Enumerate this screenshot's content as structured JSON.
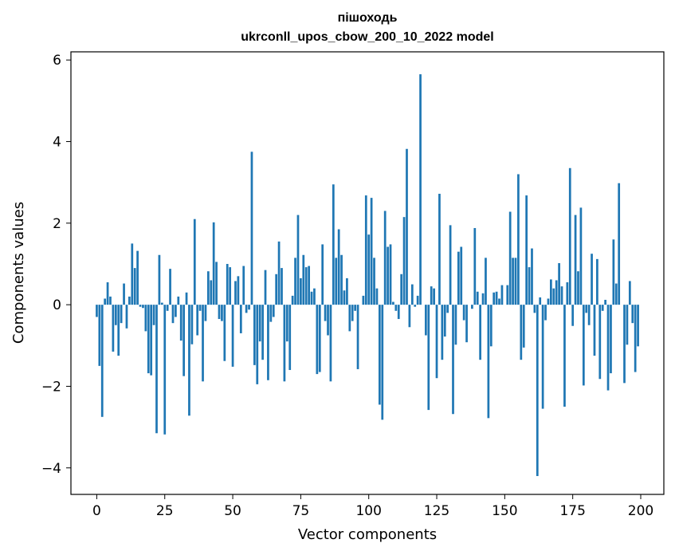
{
  "chart_data": {
    "type": "bar",
    "title": "пішоходь",
    "subtitle": "ukrconll_upos_cbow_200_10_2022 model",
    "xlabel": "Vector components",
    "ylabel": "Components values",
    "xlim": [
      -9.5,
      208.5
    ],
    "ylim": [
      -4.65,
      6.2
    ],
    "xticks": [
      0,
      25,
      50,
      75,
      100,
      125,
      150,
      175,
      200
    ],
    "xtick_labels": [
      "0",
      "25",
      "50",
      "75",
      "100",
      "125",
      "150",
      "175",
      "200"
    ],
    "yticks": [
      -4,
      -2,
      0,
      2,
      4,
      6
    ],
    "ytick_labels": [
      "−4",
      "−2",
      "0",
      "2",
      "4",
      "6"
    ],
    "bar_color": "#1f77b4",
    "grid": false,
    "legend": "none",
    "x": [
      0,
      1,
      2,
      3,
      4,
      5,
      6,
      7,
      8,
      9,
      10,
      11,
      12,
      13,
      14,
      15,
      16,
      17,
      18,
      19,
      20,
      21,
      22,
      23,
      24,
      25,
      26,
      27,
      28,
      29,
      30,
      31,
      32,
      33,
      34,
      35,
      36,
      37,
      38,
      39,
      40,
      41,
      42,
      43,
      44,
      45,
      46,
      47,
      48,
      49,
      50,
      51,
      52,
      53,
      54,
      55,
      56,
      57,
      58,
      59,
      60,
      61,
      62,
      63,
      64,
      65,
      66,
      67,
      68,
      69,
      70,
      71,
      72,
      73,
      74,
      75,
      76,
      77,
      78,
      79,
      80,
      81,
      82,
      83,
      84,
      85,
      86,
      87,
      88,
      89,
      90,
      91,
      92,
      93,
      94,
      95,
      96,
      97,
      98,
      99,
      100,
      101,
      102,
      103,
      104,
      105,
      106,
      107,
      108,
      109,
      110,
      111,
      112,
      113,
      114,
      115,
      116,
      117,
      118,
      119,
      120,
      121,
      122,
      123,
      124,
      125,
      126,
      127,
      128,
      129,
      130,
      131,
      132,
      133,
      134,
      135,
      136,
      137,
      138,
      139,
      140,
      141,
      142,
      143,
      144,
      145,
      146,
      147,
      148,
      149,
      150,
      151,
      152,
      153,
      154,
      155,
      156,
      157,
      158,
      159,
      160,
      161,
      162,
      163,
      164,
      165,
      166,
      167,
      168,
      169,
      170,
      171,
      172,
      173,
      174,
      175,
      176,
      177,
      178,
      179,
      180,
      181,
      182,
      183,
      184,
      185,
      186,
      187,
      188,
      189,
      190,
      191,
      192,
      193,
      194,
      195,
      196,
      197,
      198,
      199
    ],
    "values": [
      -0.3,
      -1.5,
      -2.75,
      0.15,
      0.55,
      0.2,
      -1.15,
      -0.5,
      -1.25,
      -0.45,
      0.52,
      -0.58,
      0.2,
      1.5,
      0.9,
      1.32,
      -0.05,
      -0.08,
      -0.65,
      -1.68,
      -1.73,
      -0.5,
      -3.15,
      1.22,
      0.05,
      -3.18,
      -0.15,
      0.88,
      -0.45,
      -0.3,
      0.2,
      -0.88,
      -1.75,
      0.3,
      -2.72,
      -0.97,
      2.1,
      -0.75,
      -0.15,
      -1.88,
      -0.4,
      0.82,
      0.6,
      2.02,
      1.05,
      -0.35,
      -0.4,
      -1.38,
      1.0,
      0.92,
      -1.52,
      0.58,
      0.7,
      -0.7,
      0.95,
      -0.2,
      -0.12,
      3.75,
      -1.48,
      -1.95,
      -0.9,
      -1.35,
      0.85,
      -1.85,
      -0.42,
      -0.3,
      0.75,
      1.55,
      0.9,
      -1.88,
      -0.9,
      -1.6,
      0.22,
      1.15,
      2.2,
      0.65,
      1.22,
      0.92,
      0.95,
      0.32,
      0.4,
      -1.7,
      -1.65,
      1.48,
      -0.4,
      -0.75,
      -1.88,
      2.95,
      1.15,
      1.85,
      1.22,
      0.35,
      0.65,
      -0.65,
      -0.4,
      -0.15,
      -1.58,
      0.0,
      0.22,
      2.68,
      1.72,
      2.62,
      1.15,
      0.4,
      -2.45,
      -2.82,
      2.3,
      1.42,
      1.48,
      0.07,
      -0.15,
      -0.35,
      0.75,
      2.15,
      3.82,
      -0.55,
      0.5,
      -0.05,
      0.22,
      5.65,
      0.0,
      -0.75,
      -2.58,
      0.45,
      0.4,
      -1.8,
      2.72,
      -1.35,
      -0.78,
      -0.2,
      1.95,
      -2.68,
      -0.98,
      1.3,
      1.42,
      -0.38,
      -0.92,
      0.0,
      -0.1,
      1.88,
      0.32,
      -1.35,
      0.28,
      1.15,
      -2.78,
      -1.02,
      0.3,
      0.32,
      0.15,
      0.48,
      0.0,
      0.48,
      2.28,
      1.15,
      1.15,
      3.2,
      -1.35,
      -1.05,
      2.68,
      0.92,
      1.38,
      -0.2,
      -4.2,
      0.18,
      -2.55,
      -0.38,
      0.15,
      0.62,
      0.4,
      0.6,
      1.02,
      0.45,
      -2.5,
      0.55,
      3.35,
      -0.52,
      2.2,
      0.82,
      2.38,
      -1.98,
      -0.2,
      -0.5,
      1.25,
      -1.25,
      1.12,
      -1.82,
      -0.15,
      0.12,
      -2.1,
      -1.68,
      1.6,
      0.52,
      2.98,
      0.0,
      -1.92,
      -0.98,
      0.58,
      -0.45,
      -1.65,
      -1.02
    ]
  }
}
